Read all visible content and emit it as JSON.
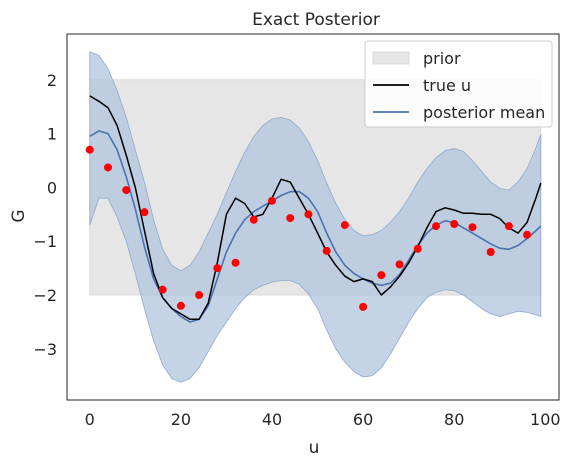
{
  "chart_data": {
    "type": "line",
    "title": "Exact Posterior",
    "xlabel": "u",
    "ylabel": "G",
    "xlim": [
      -5,
      103
    ],
    "ylim": [
      -3.95,
      2.85
    ],
    "xticks": [
      0,
      20,
      40,
      60,
      80,
      100
    ],
    "yticks": [
      -3,
      -2,
      -1,
      0,
      1,
      2
    ],
    "xtick_labels": [
      "0",
      "20",
      "40",
      "60",
      "80",
      "100"
    ],
    "ytick_labels": [
      "−3",
      "−2",
      "−1",
      "0",
      "1",
      "2"
    ],
    "grid": false,
    "legend_position": "top-right",
    "legend": [
      "prior",
      "true u",
      "posterior mean"
    ],
    "colors": {
      "prior": "#e6e6e6",
      "band": "#b0c4de",
      "true_u": "#000000",
      "posterior_mean": "#4c72b0",
      "observations": "#ff0000"
    },
    "series": [
      {
        "name": "prior",
        "kind": "band",
        "x": [
          0,
          99
        ],
        "lower": -2,
        "upper": 2
      },
      {
        "name": "true u",
        "kind": "line",
        "x": [
          0,
          2,
          4,
          6,
          8,
          10,
          12,
          14,
          16,
          18,
          20,
          22,
          24,
          26,
          28,
          30,
          32,
          34,
          36,
          38,
          40,
          42,
          44,
          46,
          48,
          50,
          52,
          54,
          56,
          58,
          60,
          62,
          64,
          66,
          68,
          70,
          72,
          74,
          76,
          78,
          80,
          82,
          84,
          86,
          88,
          90,
          92,
          94,
          96,
          98,
          99
        ],
        "y": [
          1.7,
          1.6,
          1.48,
          1.15,
          0.6,
          0.0,
          -0.8,
          -1.6,
          -2.05,
          -2.25,
          -2.35,
          -2.45,
          -2.45,
          -2.15,
          -1.4,
          -0.5,
          -0.2,
          -0.3,
          -0.55,
          -0.5,
          -0.2,
          0.15,
          0.1,
          -0.2,
          -0.5,
          -0.85,
          -1.2,
          -1.45,
          -1.65,
          -1.75,
          -1.7,
          -1.75,
          -2.0,
          -1.85,
          -1.65,
          -1.4,
          -1.1,
          -0.75,
          -0.45,
          -0.38,
          -0.42,
          -0.48,
          -0.48,
          -0.5,
          -0.5,
          -0.58,
          -0.75,
          -0.85,
          -0.65,
          -0.18,
          0.08
        ]
      },
      {
        "name": "posterior mean",
        "kind": "line",
        "x": [
          0,
          2,
          4,
          6,
          8,
          10,
          12,
          14,
          16,
          18,
          20,
          22,
          24,
          26,
          28,
          30,
          32,
          34,
          36,
          38,
          40,
          42,
          44,
          46,
          48,
          50,
          52,
          54,
          56,
          58,
          60,
          62,
          64,
          66,
          68,
          70,
          72,
          74,
          76,
          78,
          80,
          82,
          84,
          86,
          88,
          90,
          92,
          94,
          96,
          98,
          99
        ],
        "y": [
          0.95,
          1.05,
          1.0,
          0.7,
          0.2,
          -0.4,
          -1.1,
          -1.7,
          -2.05,
          -2.25,
          -2.4,
          -2.5,
          -2.45,
          -2.2,
          -1.7,
          -1.2,
          -0.85,
          -0.6,
          -0.45,
          -0.35,
          -0.25,
          -0.15,
          -0.08,
          -0.08,
          -0.2,
          -0.45,
          -0.85,
          -1.2,
          -1.45,
          -1.6,
          -1.7,
          -1.78,
          -1.82,
          -1.78,
          -1.62,
          -1.35,
          -1.08,
          -0.85,
          -0.7,
          -0.62,
          -0.65,
          -0.75,
          -0.85,
          -0.95,
          -1.05,
          -1.13,
          -1.15,
          -1.08,
          -0.95,
          -0.8,
          -0.72
        ]
      },
      {
        "name": "posterior band",
        "kind": "band",
        "x": [
          0,
          2,
          4,
          6,
          8,
          10,
          12,
          14,
          16,
          18,
          20,
          22,
          24,
          26,
          28,
          30,
          32,
          34,
          36,
          38,
          40,
          42,
          44,
          46,
          48,
          50,
          52,
          54,
          56,
          58,
          60,
          62,
          64,
          66,
          68,
          70,
          72,
          74,
          76,
          78,
          80,
          82,
          84,
          86,
          88,
          90,
          92,
          94,
          96,
          98,
          99
        ],
        "upper": [
          2.52,
          2.45,
          2.2,
          1.8,
          1.3,
          0.7,
          0.1,
          -0.6,
          -1.15,
          -1.45,
          -1.55,
          -1.45,
          -1.2,
          -0.85,
          -0.5,
          -0.1,
          0.3,
          0.65,
          0.95,
          1.15,
          1.27,
          1.3,
          1.25,
          1.1,
          0.85,
          0.5,
          0.08,
          -0.3,
          -0.6,
          -0.8,
          -0.9,
          -0.88,
          -0.8,
          -0.65,
          -0.45,
          -0.2,
          0.1,
          0.35,
          0.55,
          0.68,
          0.72,
          0.67,
          0.5,
          0.3,
          0.1,
          -0.02,
          -0.05,
          0.1,
          0.35,
          0.75,
          0.98
        ],
        "lower": [
          -0.7,
          -0.2,
          -0.2,
          -0.55,
          -1.0,
          -1.6,
          -2.25,
          -2.85,
          -3.3,
          -3.55,
          -3.62,
          -3.55,
          -3.35,
          -3.05,
          -2.75,
          -2.5,
          -2.25,
          -2.05,
          -1.9,
          -1.82,
          -1.76,
          -1.73,
          -1.73,
          -1.8,
          -1.98,
          -2.25,
          -2.65,
          -3.0,
          -3.25,
          -3.42,
          -3.52,
          -3.5,
          -3.35,
          -3.1,
          -2.8,
          -2.5,
          -2.25,
          -2.05,
          -1.95,
          -1.9,
          -1.92,
          -2.0,
          -2.12,
          -2.25,
          -2.35,
          -2.4,
          -2.35,
          -2.3,
          -2.32,
          -2.37,
          -2.4
        ]
      },
      {
        "name": "observations",
        "kind": "scatter",
        "x": [
          0,
          4,
          8,
          12,
          16,
          20,
          24,
          28,
          32,
          36,
          40,
          44,
          48,
          52,
          56,
          60,
          64,
          68,
          72,
          76,
          80,
          84,
          88,
          92,
          96
        ],
        "y": [
          0.7,
          0.37,
          -0.05,
          -0.46,
          -1.9,
          -2.2,
          -2.0,
          -1.5,
          -1.4,
          -0.6,
          -0.25,
          -0.57,
          -0.5,
          -1.18,
          -0.7,
          -2.22,
          -1.63,
          -1.43,
          -1.14,
          -0.72,
          -0.68,
          -0.74,
          -1.2,
          -0.72,
          -0.88
        ]
      }
    ]
  }
}
